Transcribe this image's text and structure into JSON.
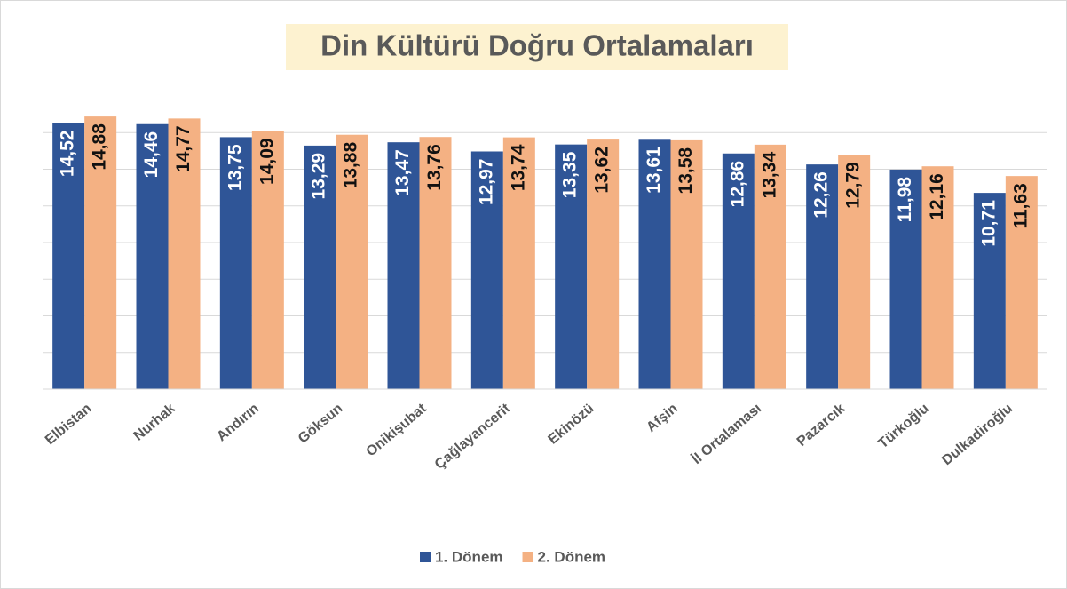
{
  "chart_data": {
    "type": "bar",
    "title": "Din Kültürü Doğru Ortalamaları",
    "categories": [
      "Elbistan",
      "Nurhak",
      "Andırın",
      "Göksun",
      "Onikişubat",
      "Çağlayancerit",
      "Ekinözü",
      "Afşin",
      "İl Ortalaması",
      "Pazarcık",
      "Türkoğlu",
      "Dulkadiroğlu"
    ],
    "series": [
      {
        "name": "1. Dönem",
        "color": "#2f5597",
        "values": [
          14.52,
          14.46,
          13.75,
          13.29,
          13.47,
          12.97,
          13.35,
          13.61,
          12.86,
          12.26,
          11.98,
          10.71
        ],
        "value_labels": [
          "14,52",
          "14,46",
          "13,75",
          "13,29",
          "13,47",
          "12,97",
          "13,35",
          "13,61",
          "12,86",
          "12,26",
          "11,98",
          "10,71"
        ]
      },
      {
        "name": "2. Dönem",
        "color": "#f4b183",
        "values": [
          14.88,
          14.77,
          14.09,
          13.88,
          13.76,
          13.74,
          13.62,
          13.58,
          13.34,
          12.79,
          12.16,
          11.63
        ],
        "value_labels": [
          "14,88",
          "14,77",
          "14,09",
          "13,88",
          "13,76",
          "13,74",
          "13,62",
          "13,58",
          "13,34",
          "12,79",
          "12,16",
          "11,63"
        ]
      }
    ],
    "ylim": [
      0,
      16
    ],
    "yticks": [
      0,
      2,
      4,
      6,
      8,
      10,
      12,
      14
    ],
    "grid": true,
    "legend": "bottom"
  }
}
